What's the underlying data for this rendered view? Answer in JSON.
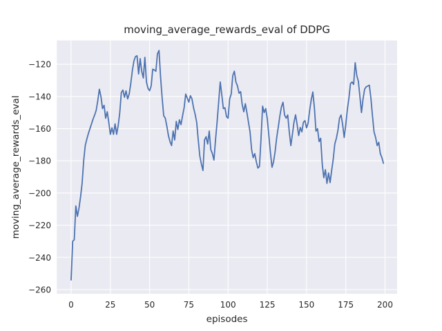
{
  "chart_data": {
    "type": "line",
    "title": "moving_average_rewards_eval of DDPG",
    "xlabel": "episodes",
    "ylabel": "moving_average_rewards_eval",
    "x_ticks": [
      0,
      25,
      50,
      75,
      100,
      125,
      150,
      175,
      200
    ],
    "y_ticks": [
      -120,
      -140,
      -160,
      -180,
      -200,
      -220,
      -240,
      -260
    ],
    "xlim": [
      -9.1,
      207.7
    ],
    "ylim": [
      -262.6,
      -105.2
    ],
    "grid": true,
    "legend": false,
    "style": "seaborn-darkgrid",
    "colors": {
      "line": "#4c72b0",
      "axes_background": "#eaeaf2",
      "grid": "#ffffff",
      "text": "#262626"
    },
    "series": [
      {
        "name": "moving_average_rewards_eval",
        "x_start": 0,
        "x_step": 1,
        "values": [
          -254,
          -230,
          -229,
          -208,
          -214.5,
          -209.5,
          -202.5,
          -194,
          -180,
          -170.5,
          -166.5,
          -163,
          -160,
          -157,
          -154,
          -151.5,
          -148.5,
          -142.5,
          -135.5,
          -140,
          -147.5,
          -145.5,
          -153.5,
          -149.5,
          -156,
          -163.5,
          -159.5,
          -163.5,
          -157,
          -163.5,
          -158,
          -150,
          -137.5,
          -136,
          -140.5,
          -136.5,
          -141.5,
          -138.5,
          -132,
          -124,
          -118,
          -115.2,
          -114.7,
          -126,
          -116.5,
          -124.5,
          -128.5,
          -115.7,
          -131,
          -135,
          -136.4,
          -133.5,
          -123,
          -123.5,
          -124.3,
          -113.5,
          -111.4,
          -128,
          -141,
          -152,
          -153.5,
          -158.5,
          -164.3,
          -168,
          -170.5,
          -161.5,
          -167,
          -155.5,
          -160.5,
          -154.5,
          -157.5,
          -152,
          -147,
          -138.5,
          -141,
          -143.5,
          -139.5,
          -141.5,
          -147,
          -151,
          -156,
          -167,
          -177,
          -182,
          -186,
          -167,
          -165,
          -169.5,
          -161.5,
          -173,
          -175.5,
          -179.5,
          -167,
          -156,
          -143.5,
          -131,
          -139,
          -147.5,
          -147,
          -152.5,
          -153.5,
          -141.5,
          -138.5,
          -127,
          -124.3,
          -131,
          -133.5,
          -138,
          -137,
          -145,
          -149.5,
          -144.5,
          -150,
          -156,
          -162,
          -173,
          -178,
          -175.5,
          -180.5,
          -184.5,
          -183.5,
          -166,
          -146,
          -150,
          -147.5,
          -154,
          -164.5,
          -175,
          -184,
          -180.5,
          -174,
          -165.5,
          -159,
          -152,
          -146.5,
          -143.6,
          -151.5,
          -153.5,
          -151.5,
          -162,
          -170.5,
          -163.5,
          -156,
          -151.4,
          -157.5,
          -164.3,
          -159.3,
          -162,
          -156,
          -155,
          -159.5,
          -156.5,
          -148.5,
          -142,
          -137.2,
          -147,
          -161.5,
          -160,
          -168,
          -166,
          -182,
          -190.5,
          -185.5,
          -194,
          -187.5,
          -193.5,
          -186,
          -179,
          -169.5,
          -166,
          -161,
          -153.5,
          -151.5,
          -157.5,
          -165.5,
          -157.5,
          -148,
          -141,
          -132,
          -131,
          -132.5,
          -119,
          -127,
          -130.5,
          -140,
          -150,
          -141.5,
          -135.5,
          -134,
          -133.5,
          -133,
          -141,
          -152,
          -162,
          -165.5,
          -170.5,
          -168.5,
          -175.5,
          -178,
          -181.5
        ]
      }
    ]
  }
}
